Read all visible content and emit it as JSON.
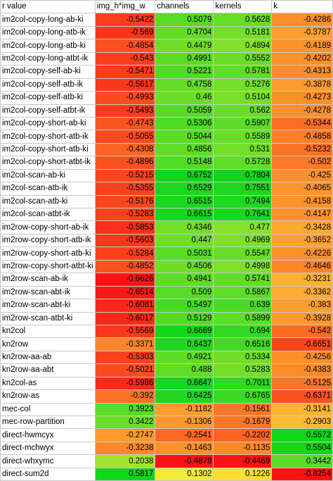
{
  "header": [
    "r value",
    "img_h*img_w",
    "channels",
    "kernels",
    "k"
  ],
  "rows": [
    {
      "label": "im2col-copy-long-ab-ki",
      "values": [
        "-0.5422",
        "0.5079",
        "0.5628",
        "-0.4286"
      ]
    },
    {
      "label": "im2col-copy-long-atb-ik",
      "values": [
        "-0.569",
        "0.4704",
        "0.5181",
        "-0.3787"
      ]
    },
    {
      "label": "im2col-copy-long-atb-ki",
      "values": [
        "-0.4854",
        "0.4479",
        "0.4894",
        "-0.4189"
      ]
    },
    {
      "label": "im2col-copy-long-atbt-ik",
      "values": [
        "-0.543",
        "0.4991",
        "0.5552",
        "-0.4202"
      ]
    },
    {
      "label": "im2col-copy-self-ab-ki",
      "values": [
        "-0.5471",
        "0.5221",
        "0.5781",
        "-0.4313"
      ]
    },
    {
      "label": "im2col-copy-self-atb-ik",
      "values": [
        "-0.5617",
        "0.4758",
        "0.5276",
        "-0.3878"
      ]
    },
    {
      "label": "im2col-copy-self-atb-ki",
      "values": [
        "-0.4993",
        "0.46",
        "0.5104",
        "-0.4273"
      ]
    },
    {
      "label": "im2col-copy-self-atbt-ik",
      "values": [
        "-0.5493",
        "0.5059",
        "0.562",
        "-0.4278"
      ]
    },
    {
      "label": "im2col-copy-short-ab-ki",
      "values": [
        "-0.4743",
        "0.5306",
        "0.5907",
        "-0.5344"
      ]
    },
    {
      "label": "im2col-copy-short-atb-ik",
      "values": [
        "-0.5055",
        "0.5044",
        "0.5589",
        "-0.4858"
      ]
    },
    {
      "label": "im2col-copy-short-atb-ki",
      "values": [
        "-0.4308",
        "0.4856",
        "0.531",
        "-0.5232"
      ]
    },
    {
      "label": "im2col-copy-short-atbt-ik",
      "values": [
        "-0.4896",
        "0.5148",
        "0.5728",
        "-0.502"
      ]
    },
    {
      "label": "im2col-scan-ab-ki",
      "values": [
        "-0.5215",
        "0.6752",
        "0.7804",
        "-0.425"
      ]
    },
    {
      "label": "im2col-scan-atb-ik",
      "values": [
        "-0.5355",
        "0.6529",
        "0.7551",
        "-0.4065"
      ]
    },
    {
      "label": "im2col-scan-atb-ki",
      "values": [
        "-0.5176",
        "0.6515",
        "0.7494",
        "-0.4158"
      ]
    },
    {
      "label": "im2col-scan-atbt-ik",
      "values": [
        "-0.5283",
        "0.6615",
        "0.7641",
        "-0.4147"
      ]
    },
    {
      "label": "im2row-copy-short-ab-ik",
      "values": [
        "-0.5853",
        "0.4346",
        "0.477",
        "-0.3428"
      ]
    },
    {
      "label": "im2row-copy-short-atb-ik",
      "values": [
        "-0.5603",
        "0.447",
        "0.4969",
        "-0.3652"
      ]
    },
    {
      "label": "im2row-copy-short-atb-ki",
      "values": [
        "-0.5284",
        "0.5031",
        "0.5547",
        "-0.4226"
      ]
    },
    {
      "label": "im2row-copy-short-atbt-ki",
      "values": [
        "-0.4852",
        "0.4506",
        "0.4998",
        "-0.4646"
      ]
    },
    {
      "label": "im2row-scan-ab-ik",
      "values": [
        "-0.6626",
        "0.4941",
        "0.5741",
        "-0.3231"
      ]
    },
    {
      "label": "im2row-scan-abt-ik",
      "values": [
        "-0.6514",
        "0.509",
        "0.5867",
        "-0.3362"
      ]
    },
    {
      "label": "im2row-scan-abt-ki",
      "values": [
        "-0.6081",
        "0.5497",
        "0.639",
        "-0.383"
      ]
    },
    {
      "label": "im2row-scan-atbt-ki",
      "values": [
        "-0.6017",
        "0.5129",
        "0.5899",
        "-0.3928"
      ]
    },
    {
      "label": "kn2col",
      "values": [
        "-0.5569",
        "0.6669",
        "0.694",
        "-0.542"
      ]
    },
    {
      "label": "kn2row",
      "values": [
        "-0.3371",
        "0.6437",
        "0.6516",
        "-0.6651"
      ]
    },
    {
      "label": "kn2row-aa-ab",
      "values": [
        "-0.5303",
        "0.4921",
        "0.5334",
        "-0.4256"
      ]
    },
    {
      "label": "kn2row-aa-abt",
      "values": [
        "-0.5021",
        "0.488",
        "0.5283",
        "-0.4383"
      ]
    },
    {
      "label": "kn2col-as",
      "values": [
        "-0.5986",
        "0.6647",
        "0.7011",
        "-0.5125"
      ]
    },
    {
      "label": "kn2row-as",
      "values": [
        "-0.392",
        "0.6425",
        "0.6765",
        "-0.6371"
      ]
    },
    {
      "label": "mec-col",
      "values": [
        "0.3923",
        "-0.1182",
        "-0.1561",
        "-0.3141"
      ]
    },
    {
      "label": "mec-row-partition",
      "values": [
        "0.3422",
        "-0.1306",
        "-0.1679",
        "-0.2903"
      ]
    },
    {
      "label": "direct-hwmcyx",
      "values": [
        "-0.2747",
        "-0.2541",
        "-0.2202",
        "0.5572"
      ]
    },
    {
      "label": "direct-mchwyx",
      "values": [
        "-0.3238",
        "-0.1463",
        "-0.1135",
        "0.5504"
      ]
    },
    {
      "label": "direct-whxymc",
      "values": [
        "0.2038",
        "-0.4878",
        "-0.4469",
        "0.3442"
      ]
    },
    {
      "label": "direct-sum2d",
      "values": [
        "0.5817",
        "0.1302",
        "0.1226",
        "-0.8254"
      ]
    }
  ]
}
